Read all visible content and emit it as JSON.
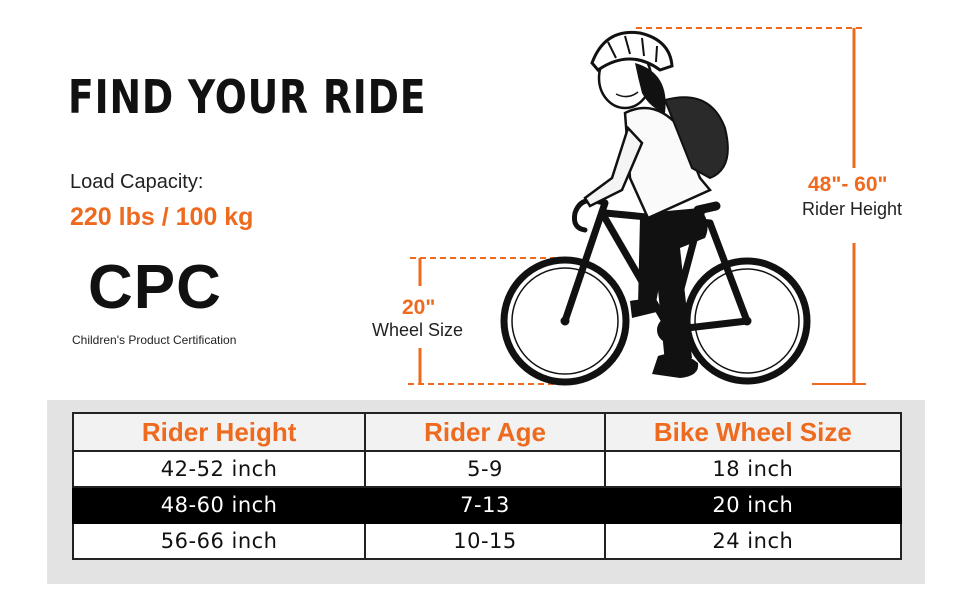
{
  "header": {
    "title": "FIND YOUR RIDE"
  },
  "load": {
    "label": "Load Capacity:",
    "value": "220 lbs / 100 kg"
  },
  "cert": {
    "logo_text": "CPC",
    "subtitle": "Children's Product Certification"
  },
  "dimensions": {
    "rider_height": {
      "value": "48\"- 60\"",
      "label": "Rider Height"
    },
    "wheel_size": {
      "value": "20\"",
      "label": "Wheel Size"
    }
  },
  "colors": {
    "accent": "#ee6a1f",
    "highlight_row": "#000000",
    "panel": "#e3e3e3"
  },
  "table": {
    "headers": [
      "Rider Height",
      "Rider Age",
      "Bike Wheel Size"
    ],
    "rows": [
      [
        "42-52 inch",
        "5-9",
        "18 inch"
      ],
      [
        "48-60 inch",
        "7-13",
        "20 inch"
      ],
      [
        "56-66 inch",
        "10-15",
        "24 inch"
      ]
    ],
    "highlighted_row": 1
  }
}
